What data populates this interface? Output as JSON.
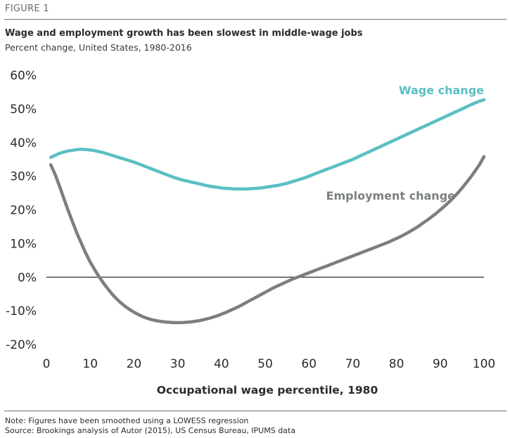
{
  "figure_label": "FIGURE 1",
  "footnotes": {
    "note": "Note: Figures have been smoothed using a LOWESS regression",
    "source": "Source: Brookings analysis of Autor (2015), US Census Bureau, IPUMS data"
  },
  "chart_data": {
    "type": "line",
    "title": "Wage and employment growth has been slowest in middle-wage jobs",
    "subtitle": "Percent change, United States, 1980-2016",
    "xlabel": "Occupational wage percentile, 1980",
    "ylabel": "",
    "xlim": [
      0,
      100
    ],
    "ylim": [
      -20,
      60
    ],
    "x_ticks": [
      0,
      10,
      20,
      30,
      40,
      50,
      60,
      70,
      80,
      90,
      100
    ],
    "y_ticks": [
      -20,
      -10,
      0,
      10,
      20,
      30,
      40,
      50,
      60
    ],
    "y_tick_labels": [
      "-20%",
      "-10%",
      "0%",
      "10%",
      "20%",
      "30%",
      "40%",
      "50%",
      "60%"
    ],
    "x_tick_labels": [
      "0",
      "10",
      "20",
      "30",
      "40",
      "50",
      "60",
      "70",
      "80",
      "90",
      "100"
    ],
    "grid": false,
    "zero_line": true,
    "legend": "direct labels on lines",
    "series": [
      {
        "name": "Wage change",
        "color": "#5bbfc4",
        "x": [
          1,
          2,
          3,
          4,
          5,
          6,
          7,
          8,
          9,
          10,
          11,
          12,
          13,
          14,
          15,
          16,
          17,
          18,
          19,
          20,
          21,
          22,
          23,
          24,
          25,
          26,
          27,
          28,
          29,
          30,
          31,
          32,
          33,
          34,
          35,
          36,
          37,
          38,
          39,
          40,
          41,
          42,
          43,
          44,
          45,
          46,
          47,
          48,
          49,
          50,
          51,
          52,
          53,
          54,
          55,
          56,
          57,
          58,
          59,
          60,
          61,
          62,
          63,
          64,
          65,
          66,
          67,
          68,
          69,
          70,
          71,
          72,
          73,
          74,
          75,
          76,
          77,
          78,
          79,
          80,
          81,
          82,
          83,
          84,
          85,
          86,
          87,
          88,
          89,
          90,
          91,
          92,
          93,
          94,
          95,
          96,
          97,
          98,
          99,
          100
        ],
        "values": [
          35.6,
          36.2,
          36.8,
          37.2,
          37.5,
          37.7,
          37.9,
          38.0,
          37.9,
          37.8,
          37.6,
          37.3,
          37.0,
          36.6,
          36.2,
          35.8,
          35.4,
          35.0,
          34.6,
          34.2,
          33.7,
          33.2,
          32.7,
          32.2,
          31.7,
          31.2,
          30.7,
          30.2,
          29.7,
          29.3,
          28.9,
          28.6,
          28.3,
          28.0,
          27.7,
          27.4,
          27.1,
          26.9,
          26.7,
          26.5,
          26.4,
          26.3,
          26.2,
          26.2,
          26.2,
          26.2,
          26.3,
          26.4,
          26.5,
          26.7,
          26.9,
          27.1,
          27.3,
          27.6,
          27.9,
          28.3,
          28.7,
          29.1,
          29.5,
          30.0,
          30.5,
          31.0,
          31.5,
          32.0,
          32.5,
          33.0,
          33.5,
          34.0,
          34.5,
          35.0,
          35.6,
          36.2,
          36.8,
          37.4,
          38.0,
          38.6,
          39.2,
          39.8,
          40.4,
          41.0,
          41.6,
          42.2,
          42.8,
          43.4,
          44.0,
          44.6,
          45.2,
          45.8,
          46.4,
          47.0,
          47.6,
          48.2,
          48.8,
          49.4,
          50.0,
          50.6,
          51.2,
          51.8,
          52.3,
          52.7
        ]
      },
      {
        "name": "Employment change",
        "color": "#7b7f80",
        "x": [
          1,
          2,
          3,
          4,
          5,
          6,
          7,
          8,
          9,
          10,
          11,
          12,
          13,
          14,
          15,
          16,
          17,
          18,
          19,
          20,
          21,
          22,
          23,
          24,
          25,
          26,
          27,
          28,
          29,
          30,
          31,
          32,
          33,
          34,
          35,
          36,
          37,
          38,
          39,
          40,
          41,
          42,
          43,
          44,
          45,
          46,
          47,
          48,
          49,
          50,
          51,
          52,
          53,
          54,
          55,
          56,
          57,
          58,
          59,
          60,
          61,
          62,
          63,
          64,
          65,
          66,
          67,
          68,
          69,
          70,
          71,
          72,
          73,
          74,
          75,
          76,
          77,
          78,
          79,
          80,
          81,
          82,
          83,
          84,
          85,
          86,
          87,
          88,
          89,
          90,
          91,
          92,
          93,
          94,
          95,
          96,
          97,
          98,
          99,
          100
        ],
        "values": [
          33.4,
          30.5,
          27.0,
          23.3,
          19.7,
          16.3,
          13.0,
          10.0,
          7.1,
          4.5,
          2.3,
          0.2,
          -1.7,
          -3.4,
          -5.0,
          -6.4,
          -7.6,
          -8.7,
          -9.6,
          -10.4,
          -11.1,
          -11.7,
          -12.2,
          -12.6,
          -12.9,
          -13.1,
          -13.3,
          -13.4,
          -13.5,
          -13.5,
          -13.5,
          -13.4,
          -13.3,
          -13.1,
          -12.9,
          -12.6,
          -12.3,
          -11.9,
          -11.5,
          -11.0,
          -10.5,
          -9.9,
          -9.3,
          -8.7,
          -8.0,
          -7.3,
          -6.6,
          -5.9,
          -5.2,
          -4.5,
          -3.8,
          -3.1,
          -2.5,
          -1.9,
          -1.3,
          -0.7,
          -0.2,
          0.3,
          0.8,
          1.3,
          1.8,
          2.3,
          2.8,
          3.3,
          3.8,
          4.3,
          4.8,
          5.3,
          5.8,
          6.3,
          6.8,
          7.3,
          7.8,
          8.3,
          8.8,
          9.3,
          9.8,
          10.3,
          10.9,
          11.5,
          12.1,
          12.8,
          13.5,
          14.3,
          15.1,
          16.0,
          16.9,
          17.9,
          18.9,
          20.0,
          21.1,
          22.3,
          23.6,
          25.0,
          26.5,
          28.1,
          29.8,
          31.6,
          33.5,
          35.8
        ]
      }
    ]
  }
}
